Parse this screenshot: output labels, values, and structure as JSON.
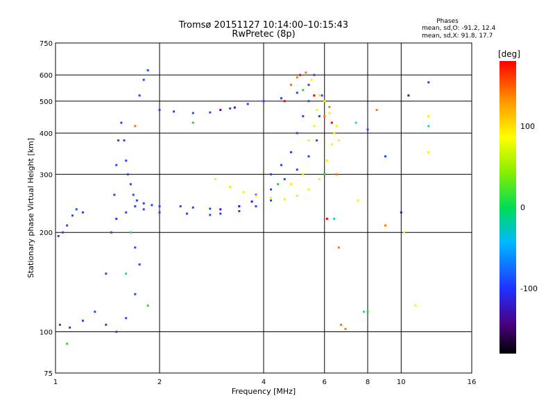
{
  "chart_data": {
    "type": "scatter",
    "title": "Tromsø 20151127 10:14:00–10:15:43",
    "subtitle": "RwPretec (8p)",
    "xlabel": "Frequency [MHz]",
    "ylabel": "Stationary phase Virtual Height [km]",
    "x_scale": "log",
    "y_scale": "log",
    "xlim": [
      1,
      16
    ],
    "ylim": [
      75,
      750
    ],
    "x_ticks": [
      1,
      2,
      4,
      6,
      8,
      10,
      16
    ],
    "y_ticks": [
      75,
      100,
      200,
      300,
      400,
      500,
      600,
      750
    ],
    "x_gridlines": [
      2,
      4,
      6,
      8,
      10
    ],
    "y_gridlines": [
      100,
      200,
      300,
      400,
      500,
      600
    ],
    "stats": {
      "heading": "Phases",
      "o_line": "mean, sd,O: -91.2, 12.4",
      "x_line": "mean, sd,X:  91.8, 17.7"
    },
    "colorbar": {
      "label": "[deg]",
      "range": [
        -180,
        180
      ],
      "ticks": [
        100,
        0,
        -100
      ],
      "colormap": "rainbow"
    },
    "series": [
      {
        "phase": -100,
        "color": "#2244ff",
        "points": [
          [
            1.02,
            195
          ],
          [
            1.05,
            200
          ],
          [
            1.08,
            210
          ],
          [
            1.12,
            225
          ],
          [
            1.15,
            235
          ],
          [
            1.2,
            230
          ],
          [
            1.03,
            105
          ],
          [
            1.1,
            103
          ],
          [
            1.2,
            108
          ],
          [
            1.3,
            115
          ],
          [
            1.4,
            105
          ],
          [
            1.5,
            100
          ],
          [
            1.4,
            150
          ],
          [
            1.45,
            200
          ],
          [
            1.48,
            260
          ],
          [
            1.5,
            320
          ],
          [
            1.52,
            380
          ],
          [
            1.55,
            430
          ],
          [
            1.58,
            380
          ],
          [
            1.6,
            330
          ],
          [
            1.62,
            300
          ],
          [
            1.65,
            280
          ],
          [
            1.68,
            260
          ],
          [
            1.72,
            250
          ],
          [
            1.8,
            245
          ],
          [
            1.9,
            242
          ],
          [
            2.0,
            240
          ],
          [
            2.3,
            240
          ],
          [
            2.5,
            238
          ],
          [
            2.8,
            236
          ],
          [
            1.5,
            220
          ],
          [
            1.6,
            230
          ],
          [
            1.7,
            240
          ],
          [
            1.8,
            235
          ],
          [
            2.0,
            230
          ],
          [
            2.4,
            228
          ],
          [
            2.8,
            226
          ],
          [
            3.0,
            228
          ],
          [
            3.4,
            232
          ],
          [
            3.8,
            240
          ],
          [
            4.2,
            250
          ],
          [
            1.6,
            110
          ],
          [
            1.7,
            130
          ],
          [
            1.75,
            160
          ],
          [
            1.7,
            180
          ],
          [
            1.75,
            520
          ],
          [
            1.8,
            580
          ],
          [
            1.85,
            620
          ],
          [
            2.0,
            470
          ],
          [
            2.2,
            465
          ],
          [
            2.5,
            460
          ],
          [
            2.8,
            462
          ],
          [
            3.2,
            475
          ],
          [
            3.6,
            490
          ],
          [
            4.0,
            500
          ],
          [
            4.5,
            510
          ],
          [
            5.0,
            530
          ],
          [
            5.4,
            560
          ],
          [
            5.6,
            600
          ],
          [
            4.2,
            300
          ],
          [
            4.5,
            320
          ],
          [
            4.8,
            350
          ],
          [
            5.0,
            400
          ],
          [
            5.2,
            450
          ],
          [
            5.4,
            500
          ],
          [
            3.8,
            260
          ],
          [
            4.2,
            270
          ],
          [
            4.6,
            290
          ],
          [
            5.0,
            310
          ],
          [
            5.4,
            340
          ],
          [
            5.7,
            380
          ],
          [
            5.8,
            450
          ],
          [
            5.9,
            520
          ],
          [
            12.0,
            570
          ],
          [
            9.0,
            340
          ],
          [
            8.0,
            410
          ]
        ]
      },
      {
        "phase": -130,
        "color": "#5500cc",
        "points": [
          [
            3.0,
            235
          ],
          [
            3.4,
            240
          ],
          [
            3.7,
            248
          ],
          [
            3.3,
            478
          ],
          [
            3.0,
            470
          ],
          [
            10.0,
            230
          ],
          [
            10.5,
            520
          ]
        ]
      },
      {
        "phase": 120,
        "color": "#ffee00",
        "points": [
          [
            2.9,
            290
          ],
          [
            3.2,
            275
          ],
          [
            3.5,
            265
          ],
          [
            3.8,
            258
          ],
          [
            4.2,
            255
          ],
          [
            4.6,
            252
          ],
          [
            5.0,
            258
          ],
          [
            5.4,
            270
          ],
          [
            5.8,
            290
          ],
          [
            6.1,
            330
          ],
          [
            6.3,
            370
          ],
          [
            6.4,
            400
          ],
          [
            6.5,
            420
          ],
          [
            5.4,
            380
          ],
          [
            5.6,
            420
          ],
          [
            5.7,
            470
          ],
          [
            5.8,
            520
          ],
          [
            5.5,
            580
          ],
          [
            4.8,
            280
          ],
          [
            5.2,
            300
          ],
          [
            6.0,
            500
          ],
          [
            6.2,
            460
          ],
          [
            6.6,
            380
          ],
          [
            7.5,
            250
          ],
          [
            10.2,
            200
          ],
          [
            11.0,
            120
          ],
          [
            12.0,
            350
          ],
          [
            12.0,
            450
          ]
        ]
      },
      {
        "phase": 160,
        "color": "#ff7700",
        "points": [
          [
            4.8,
            560
          ],
          [
            5.0,
            590
          ],
          [
            5.3,
            610
          ],
          [
            6.0,
            450
          ],
          [
            6.2,
            480
          ],
          [
            6.5,
            300
          ],
          [
            6.7,
            105
          ],
          [
            6.9,
            102
          ],
          [
            8.5,
            470
          ],
          [
            9.0,
            210
          ],
          [
            1.7,
            420
          ],
          [
            6.6,
            180
          ]
        ]
      },
      {
        "phase": 180,
        "color": "#ff0000",
        "points": [
          [
            4.6,
            500
          ],
          [
            5.1,
            600
          ],
          [
            5.6,
            520
          ],
          [
            6.3,
            430
          ],
          [
            6.1,
            220
          ]
        ]
      },
      {
        "phase": 30,
        "color": "#33cc33",
        "points": [
          [
            1.85,
            120
          ],
          [
            2.5,
            430
          ],
          [
            4.4,
            280
          ],
          [
            5.2,
            540
          ],
          [
            6.0,
            300
          ],
          [
            8.0,
            115
          ],
          [
            1.08,
            92
          ]
        ]
      },
      {
        "phase": -30,
        "color": "#22cccc",
        "points": [
          [
            1.6,
            150
          ],
          [
            1.65,
            200
          ],
          [
            6.4,
            220
          ],
          [
            7.8,
            115
          ],
          [
            7.4,
            430
          ],
          [
            12.0,
            420
          ]
        ]
      }
    ]
  }
}
